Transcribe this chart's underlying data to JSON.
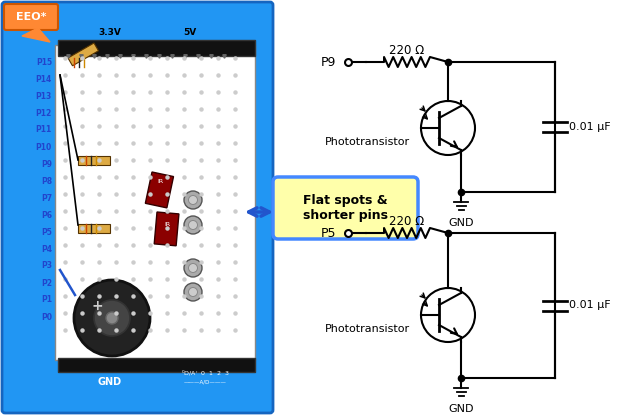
{
  "bg_color": "#ffffff",
  "breadboard_bg": "#2196f3",
  "lc": "#000000",
  "label_p9": "P9",
  "label_p5": "P5",
  "label_220ohm": "220 Ω",
  "label_001uf": "0.01 μF",
  "label_gnd": "GND",
  "label_phototransistor": "Phototransistor",
  "label_flatspots": "Flat spots &\nshorter pins",
  "label_eeo": "EEO*",
  "label_33v": "3.3V",
  "label_5v": "5V",
  "label_gnd_bb": "GND",
  "callout_bg": "#ffffaa",
  "callout_border": "#4488ff",
  "arrow_color": "#2255cc",
  "orange_callout_bg": "#ff8833",
  "port_labels": [
    "P15",
    "P14",
    "P13",
    "P12",
    "P11",
    "P10",
    "P9",
    "P8",
    "P7",
    "P6",
    "P5",
    "P4",
    "P3",
    "P2",
    "P1",
    "P0"
  ]
}
